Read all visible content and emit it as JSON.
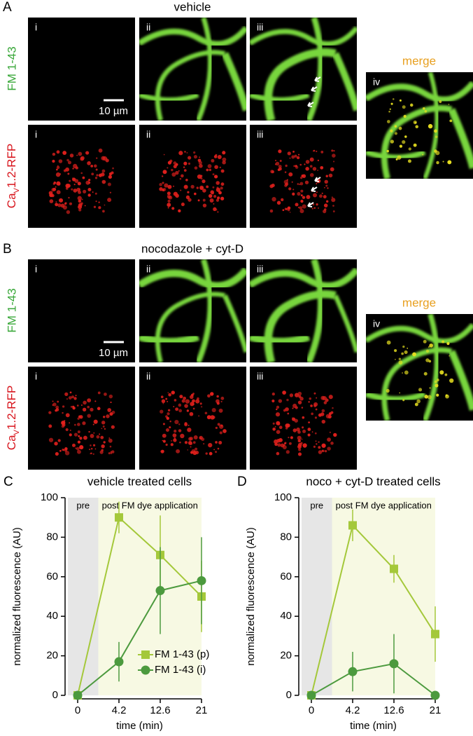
{
  "panels": [
    {
      "letter": "A",
      "condition": "vehicle"
    },
    {
      "letter": "B",
      "condition": "nocodazole + cyt-D"
    }
  ],
  "image_labels": {
    "row1": "FM 1-43",
    "row2_parts": [
      "Ca",
      "V",
      "1.2-RFP"
    ],
    "merge": "merge",
    "scale": "10 µm",
    "roman": [
      "i",
      "ii",
      "iii",
      "iv"
    ]
  },
  "chart_data": [
    {
      "type": "line",
      "letter": "C",
      "title": "vehicle treated cells",
      "x_label": "time (min)",
      "y_label": "normalized fluorescence (AU)",
      "annotations": [
        "pre",
        "post FM dye application"
      ],
      "categories": [
        "0",
        "4.2",
        "12.6",
        "21"
      ],
      "ylim": [
        0,
        100
      ],
      "yticks": [
        0,
        20,
        40,
        60,
        80,
        100
      ],
      "legend": "lower right",
      "series": [
        {
          "name": "FM 1-43 (p)",
          "color": "#a4c83a",
          "marker": "square",
          "values": [
            0,
            90,
            71,
            50
          ],
          "errors": [
            0,
            8,
            20,
            18
          ]
        },
        {
          "name": "FM 1-43 (i)",
          "color": "#4c9a3e",
          "marker": "circle",
          "values": [
            0,
            17,
            53,
            58
          ],
          "errors": [
            0,
            10,
            22,
            22
          ]
        }
      ]
    },
    {
      "type": "line",
      "letter": "D",
      "title": "noco + cyt-D treated cells",
      "x_label": "time (min)",
      "y_label": "normalized fluorescence (AU)",
      "annotations": [
        "pre",
        "post FM dye application"
      ],
      "categories": [
        "0",
        "4.2",
        "12.6",
        "21"
      ],
      "ylim": [
        0,
        100
      ],
      "yticks": [
        0,
        20,
        40,
        60,
        80,
        100
      ],
      "legend": false,
      "series": [
        {
          "name": "FM 1-43 (p)",
          "color": "#a4c83a",
          "marker": "square",
          "values": [
            0,
            86,
            64,
            31
          ],
          "errors": [
            0,
            8,
            7,
            14
          ]
        },
        {
          "name": "FM 1-43 (i)",
          "color": "#4c9a3e",
          "marker": "circle",
          "values": [
            0,
            12,
            16,
            0
          ],
          "errors": [
            0,
            10,
            15,
            0
          ]
        }
      ]
    }
  ]
}
